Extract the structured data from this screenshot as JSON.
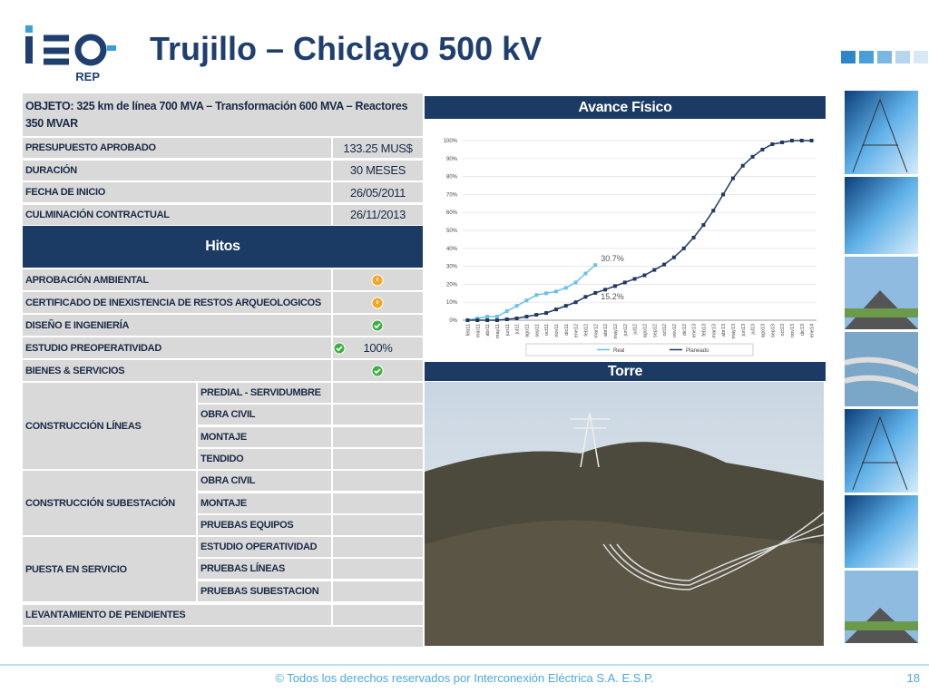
{
  "header": {
    "title": "Trujillo – Chiclayo 500 kV",
    "logo": "isa",
    "logo_sub": "REP"
  },
  "table": {
    "objeto": "OBJETO: 325 km de línea 700 MVA – Transformación 600 MVA – Reactores 350 MVAR",
    "info": [
      {
        "label": "PRESUPUESTO APROBADO",
        "value": "133.25 MUS$"
      },
      {
        "label": "DURACIÓN",
        "value": "30 MESES"
      },
      {
        "label": "FECHA DE INICIO",
        "value": "26/05/2011"
      },
      {
        "label": "CULMINACIÓN CONTRACTUAL",
        "value": "26/11/2013"
      }
    ],
    "hitos_title": "Hitos",
    "hitos": [
      {
        "label": "APROBACIÓN AMBIENTAL",
        "status_color": "#f5a623"
      },
      {
        "label": "CERTIFICADO DE INEXISTENCIA DE RESTOS ARQUEOLOGICOS",
        "status_color": "#f5a623"
      },
      {
        "label": "DISEÑO E INGENIERÍA",
        "status_color": "#3cb043"
      },
      {
        "label": "ESTUDIO PREOPERATIVIDAD",
        "status_color": "#3cb043",
        "value": "100%"
      },
      {
        "label": "BIENES & SERVICIOS",
        "status_color": "#3cb043"
      }
    ],
    "groups": [
      {
        "label": "CONSTRUCCIÓN LÍNEAS",
        "items": [
          "PREDIAL - SERVIDUMBRE",
          "OBRA CIVIL",
          "MONTAJE",
          "TENDIDO"
        ]
      },
      {
        "label": "CONSTRUCCIÓN SUBESTACIÓN",
        "items": [
          "OBRA CIVIL",
          "MONTAJE",
          "PRUEBAS EQUIPOS"
        ]
      },
      {
        "label": "PUESTA EN SERVICIO",
        "items": [
          "ESTUDIO OPERATIVIDAD",
          "PRUEBAS LÍNEAS",
          "PRUEBAS SUBESTACION"
        ]
      }
    ],
    "last": "LEVANTAMIENTO DE PENDIENTES"
  },
  "chart_data": {
    "type": "line",
    "title": "Avance Físico",
    "categories": [
      "feb11",
      "mar11",
      "abr11",
      "may11",
      "jun11",
      "jul11",
      "ago11",
      "sep11",
      "oct11",
      "nov11",
      "dic11",
      "ene12",
      "feb12",
      "mar12",
      "abr12",
      "may12",
      "jun12",
      "jul12",
      "ago12",
      "sep12",
      "oct12",
      "nov12",
      "dic12",
      "ene13",
      "feb13",
      "mar13",
      "abr13",
      "may13",
      "jun13",
      "jul13",
      "ago13",
      "sep13",
      "oct13",
      "nov13",
      "dic13",
      "ene14"
    ],
    "series": [
      {
        "name": "Real",
        "color": "#6cc0e8",
        "values": [
          0,
          1,
          2,
          2,
          5,
          8,
          11,
          14,
          15,
          16,
          18,
          21,
          26,
          30.7,
          null,
          null,
          null,
          null,
          null,
          null,
          null,
          null,
          null,
          null,
          null,
          null,
          null,
          null,
          null,
          null,
          null,
          null,
          null,
          null,
          null,
          null
        ],
        "value_labels": [
          null,
          null,
          null,
          null,
          null,
          null,
          null,
          null,
          null,
          null,
          null,
          null,
          null,
          "30.7%",
          null,
          null,
          null,
          null,
          null,
          null,
          null,
          null,
          null,
          null,
          null,
          null,
          null,
          null,
          null,
          null,
          null,
          null,
          null,
          null,
          null,
          null
        ]
      },
      {
        "name": "Planeado",
        "color": "#1f3864",
        "values": [
          0,
          0,
          0,
          0,
          0.5,
          1,
          2,
          3,
          4,
          6,
          8,
          10,
          13,
          15.2,
          17,
          19,
          21,
          23,
          25,
          28,
          31,
          35,
          40,
          46,
          53,
          61,
          70,
          79,
          86,
          91,
          95,
          98,
          99,
          100,
          100,
          100
        ],
        "value_labels": [
          null,
          null,
          null,
          null,
          null,
          null,
          null,
          null,
          null,
          null,
          null,
          null,
          null,
          "15.2%",
          null,
          null,
          null,
          null,
          null,
          null,
          null,
          null,
          null,
          null,
          null,
          null,
          null,
          null,
          null,
          null,
          null,
          null,
          null,
          null,
          null,
          null
        ]
      }
    ],
    "ylim": [
      0,
      100
    ],
    "yticks": [
      {
        "value": 0,
        "label": "0%"
      },
      {
        "value": 10,
        "label": "10%"
      },
      {
        "value": 20,
        "label": "20%"
      },
      {
        "value": 30,
        "label": "30%"
      },
      {
        "value": 40,
        "label": "40%"
      },
      {
        "value": 50,
        "label": "50%"
      },
      {
        "value": 60,
        "label": "60%"
      },
      {
        "value": 70,
        "label": "70%"
      },
      {
        "value": 80,
        "label": "80%"
      },
      {
        "value": 90,
        "label": "90%"
      },
      {
        "value": 100,
        "label": "100%"
      }
    ],
    "grid": true,
    "legend": "bottom"
  },
  "photo_title": "Torre",
  "footer": {
    "text": "© Todos los derechos reservados por Interconexión Eléctrica S.A. E.S.P.",
    "page": "18"
  }
}
